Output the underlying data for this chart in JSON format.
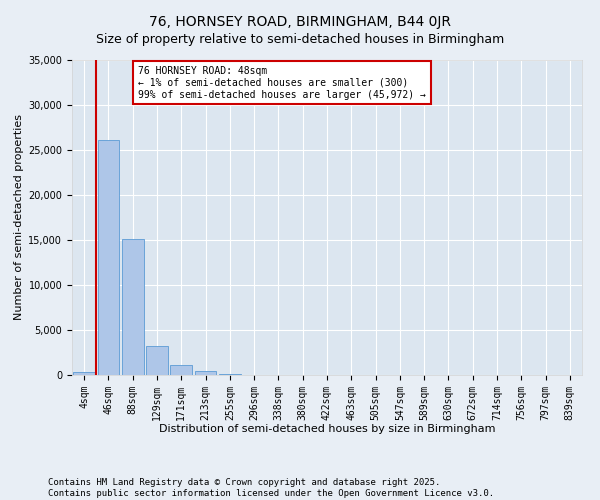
{
  "title": "76, HORNSEY ROAD, BIRMINGHAM, B44 0JR",
  "subtitle": "Size of property relative to semi-detached houses in Birmingham",
  "xlabel": "Distribution of semi-detached houses by size in Birmingham",
  "ylabel": "Number of semi-detached properties",
  "categories": [
    "4sqm",
    "46sqm",
    "88sqm",
    "129sqm",
    "171sqm",
    "213sqm",
    "255sqm",
    "296sqm",
    "338sqm",
    "380sqm",
    "422sqm",
    "463sqm",
    "505sqm",
    "547sqm",
    "589sqm",
    "630sqm",
    "672sqm",
    "714sqm",
    "756sqm",
    "797sqm",
    "839sqm"
  ],
  "values": [
    300,
    26100,
    15150,
    3200,
    1100,
    450,
    150,
    0,
    0,
    0,
    0,
    0,
    0,
    0,
    0,
    0,
    0,
    0,
    0,
    0,
    0
  ],
  "bar_color": "#aec6e8",
  "bar_edge_color": "#5b9bd5",
  "vline_color": "#cc0000",
  "vline_xindex": 1,
  "annotation_title": "76 HORNSEY ROAD: 48sqm",
  "annotation_line2": "← 1% of semi-detached houses are smaller (300)",
  "annotation_line3": "99% of semi-detached houses are larger (45,972) →",
  "annotation_box_color": "#cc0000",
  "ylim": [
    0,
    35000
  ],
  "yticks": [
    0,
    5000,
    10000,
    15000,
    20000,
    25000,
    30000,
    35000
  ],
  "background_color": "#e8eef5",
  "plot_bg_color": "#dce6f0",
  "footer": "Contains HM Land Registry data © Crown copyright and database right 2025.\nContains public sector information licensed under the Open Government Licence v3.0.",
  "title_fontsize": 10,
  "subtitle_fontsize": 9,
  "footer_fontsize": 6.5,
  "axis_label_fontsize": 8,
  "tick_fontsize": 7,
  "annotation_fontsize": 7
}
